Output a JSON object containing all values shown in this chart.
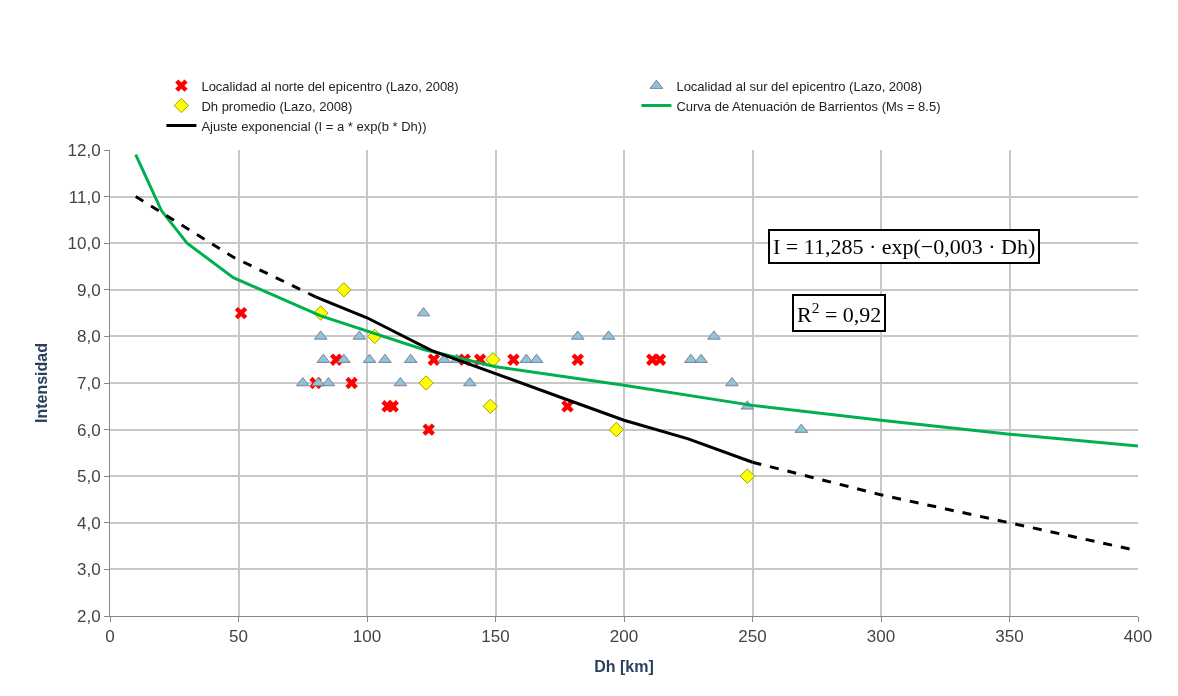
{
  "chart_data": {
    "type": "line",
    "xlabel": "Dh [km]",
    "ylabel": "Intensidad",
    "xlim": [
      0,
      400
    ],
    "xticks": [
      0,
      50,
      100,
      150,
      200,
      250,
      300,
      350,
      400
    ],
    "ylim": [
      2,
      12
    ],
    "yticks": [
      {
        "value": 2,
        "label": "2,0"
      },
      {
        "value": 3,
        "label": "3,0"
      },
      {
        "value": 4,
        "label": "4,0"
      },
      {
        "value": 5,
        "label": "5,0"
      },
      {
        "value": 6,
        "label": "6,0"
      },
      {
        "value": 7,
        "label": "7,0"
      },
      {
        "value": 8,
        "label": "8,0"
      },
      {
        "value": 9,
        "label": "9,0"
      },
      {
        "value": 10,
        "label": "10,0"
      },
      {
        "value": 11,
        "label": "11,0"
      },
      {
        "value": 12,
        "label": "12,0"
      }
    ],
    "grid": true,
    "legend": "top",
    "series": [
      {
        "name": "Localidad al norte del epicentro (Lazo, 2008)",
        "type": "scatter",
        "marker": "cross",
        "color": "#ff0000",
        "x": [
          51,
          80,
          88,
          94,
          108,
          110,
          124,
          126,
          138,
          144,
          157,
          178,
          182,
          211,
          214
        ],
        "values": [
          8.5,
          7.0,
          7.5,
          7.0,
          6.5,
          6.5,
          6.0,
          7.5,
          7.5,
          7.5,
          7.5,
          6.5,
          7.5,
          7.5,
          7.5
        ]
      },
      {
        "name": "Localidad al sur del epicentro (Lazo, 2008)",
        "type": "scatter",
        "marker": "triangle",
        "color": "#8fc3d6",
        "x": [
          75,
          81,
          82,
          83,
          85,
          91,
          97,
          101,
          107,
          113,
          117,
          122,
          130,
          135,
          140,
          162,
          166,
          182,
          194,
          226,
          230,
          235,
          242,
          248,
          269
        ],
        "values": [
          7.0,
          7.0,
          8.0,
          7.5,
          7.0,
          7.5,
          8.0,
          7.5,
          7.5,
          7.0,
          7.5,
          8.5,
          7.5,
          7.5,
          7.0,
          7.5,
          7.5,
          8.0,
          8.0,
          7.5,
          7.5,
          8.0,
          7.0,
          6.5,
          6.0
        ]
      },
      {
        "name": "Dh promedio (Lazo, 2008)",
        "type": "scatter",
        "marker": "diamond",
        "color": "#ffff00",
        "x": [
          82,
          91,
          103,
          123,
          148,
          149,
          197,
          248
        ],
        "values": [
          8.5,
          9.0,
          8.0,
          7.0,
          6.5,
          7.5,
          6.0,
          5.0
        ]
      },
      {
        "name": "Curva de Atenuación de Barrientos (Ms = 8.5)",
        "marker": "none",
        "line_style": "solid",
        "color": "#00b050",
        "x": [
          10,
          20,
          30,
          48,
          82,
          122,
          150,
          200,
          250,
          300,
          350,
          400
        ],
        "values": [
          11.9,
          10.7,
          10.0,
          9.26,
          8.44,
          7.72,
          7.35,
          6.95,
          6.52,
          6.2,
          5.9,
          5.65
        ]
      },
      {
        "name": "Ajuste exponencial (I = a * exp(b * Dh))",
        "marker": "none",
        "line_style": "solid",
        "color": "#000000",
        "x": [
          80,
          100,
          125,
          150,
          175,
          200,
          225,
          250
        ],
        "values": [
          8.85,
          8.4,
          7.7,
          7.2,
          6.7,
          6.2,
          5.8,
          5.3
        ]
      },
      {
        "marker": "none",
        "line_style": "dashed",
        "color": "#000000",
        "x": [
          10,
          48,
          80,
          150,
          250,
          300,
          350,
          400
        ],
        "values": [
          11.0,
          9.7,
          8.85,
          null,
          5.3,
          4.6,
          4.0,
          3.4
        ]
      }
    ],
    "annotations": [
      "I = 11,285 · exp(−0,003 · Dh)",
      "R$^{2}$ = 0,92"
    ]
  }
}
